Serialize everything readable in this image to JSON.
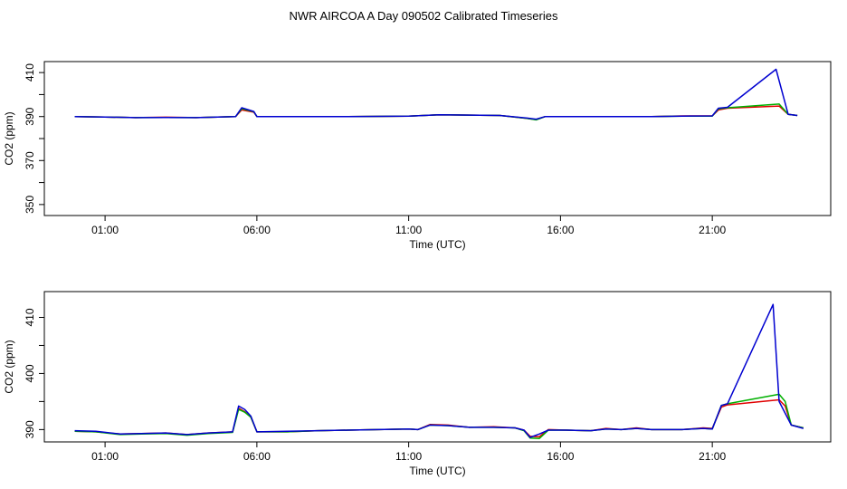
{
  "title": "NWR AIRCOA A  Day 090502  Calibrated Timeseries",
  "colors": {
    "red": "#e00000",
    "green": "#00b000",
    "blue": "#0000d0",
    "axis": "#000000"
  },
  "chart_data": [
    {
      "type": "line",
      "xlabel": "Time (UTC)",
      "ylabel": "CO2 (ppm)",
      "x_unit": "hours UTC",
      "xlim": [
        -1,
        24.9
      ],
      "ylim": [
        345,
        415
      ],
      "x_ticks": [
        1,
        6,
        11,
        16,
        21
      ],
      "x_tick_labels": [
        "01:00",
        "06:00",
        "11:00",
        "16:00",
        "21:00"
      ],
      "y_ticks": [
        350,
        370,
        390,
        410
      ],
      "y_tick_labels": [
        "350",
        "370",
        "390",
        "410"
      ],
      "series": [
        {
          "color": "red",
          "x": [
            0,
            1,
            2,
            3,
            4,
            5.3,
            5.5,
            5.9,
            6,
            9,
            11,
            12,
            14,
            14.9,
            15.2,
            15.5,
            17,
            19,
            20,
            21,
            21.2,
            21.5,
            23.2,
            23.5,
            23.8
          ],
          "y": [
            390,
            389.8,
            389.5,
            389.7,
            389.5,
            390,
            393,
            392,
            390,
            390,
            390.2,
            390.8,
            390.5,
            389.2,
            388.6,
            390,
            390,
            390,
            390.3,
            390.3,
            393,
            393.8,
            394.8,
            391,
            390.5
          ]
        },
        {
          "color": "green",
          "x": [
            0,
            1,
            2,
            3,
            4,
            5.3,
            5.5,
            5.9,
            6,
            9,
            11,
            12,
            14,
            14.9,
            15.2,
            15.5,
            17,
            19,
            20,
            21,
            21.2,
            21.5,
            23.2,
            23.5,
            23.8
          ],
          "y": [
            390,
            389.8,
            389.5,
            389.6,
            389.5,
            390,
            393.6,
            392.2,
            390,
            390,
            390.2,
            390.8,
            390.5,
            389.2,
            388.5,
            390,
            390,
            390,
            390.2,
            390.2,
            393.5,
            394,
            395.7,
            391,
            390.5
          ]
        },
        {
          "color": "blue",
          "x": [
            0,
            1,
            2,
            3,
            4,
            5.3,
            5.5,
            5.9,
            6,
            9,
            11,
            12,
            14,
            14.9,
            15.2,
            15.5,
            17,
            19,
            20,
            21,
            21.2,
            21.5,
            23.1,
            23.5,
            23.8
          ],
          "y": [
            390,
            389.8,
            389.5,
            389.6,
            389.5,
            390,
            394,
            392.3,
            390,
            390,
            390.2,
            390.8,
            390.5,
            389.3,
            388.8,
            390,
            390,
            390,
            390.2,
            390.3,
            393.8,
            394.2,
            411.5,
            391,
            390.5
          ]
        }
      ]
    },
    {
      "type": "line",
      "xlabel": "Time (UTC)",
      "ylabel": "CO2 (ppm)",
      "x_unit": "hours UTC",
      "xlim": [
        -1,
        24.9
      ],
      "ylim": [
        387.8,
        414.6
      ],
      "x_ticks": [
        1,
        6,
        11,
        16,
        21
      ],
      "x_tick_labels": [
        "01:00",
        "06:00",
        "11:00",
        "16:00",
        "21:00"
      ],
      "y_ticks": [
        390,
        400,
        410
      ],
      "y_tick_labels": [
        "390",
        "400",
        "410"
      ],
      "series": [
        {
          "color": "red",
          "x": [
            0,
            0.7,
            1.5,
            2.2,
            3,
            3.7,
            4.4,
            5.2,
            5.4,
            5.6,
            5.8,
            6.0,
            7,
            8,
            9,
            10,
            11,
            11.3,
            11.7,
            12.3,
            13,
            13.8,
            14.5,
            14.8,
            15.0,
            15.3,
            15.6,
            16.2,
            17,
            17.5,
            18,
            18.5,
            19,
            19.5,
            20,
            20.7,
            21.0,
            21.3,
            21.5,
            23.2,
            23.4,
            23.6,
            24.0
          ],
          "y": [
            389.7,
            389.6,
            389.2,
            389.3,
            389.4,
            389.1,
            389.4,
            389.6,
            393.8,
            393.2,
            392.2,
            389.6,
            389.6,
            389.8,
            389.9,
            390.0,
            390.1,
            390.0,
            390.9,
            390.8,
            390.4,
            390.5,
            390.3,
            389.9,
            388.8,
            388.7,
            390.0,
            389.9,
            389.8,
            390.2,
            390.0,
            390.3,
            390.0,
            390.0,
            390.0,
            390.3,
            390.2,
            394.0,
            394.4,
            395.3,
            394.2,
            390.8,
            390.3
          ]
        },
        {
          "color": "green",
          "x": [
            0,
            0.7,
            1.5,
            2.2,
            3,
            3.7,
            4.4,
            5.2,
            5.4,
            5.6,
            5.8,
            6.0,
            7,
            8,
            9,
            10,
            11,
            11.3,
            11.7,
            12.3,
            13,
            13.8,
            14.5,
            14.8,
            15.0,
            15.3,
            15.6,
            16.2,
            17,
            17.5,
            18,
            18.5,
            19,
            19.5,
            20,
            20.7,
            21.0,
            21.3,
            21.5,
            23.2,
            23.4,
            23.6,
            24.0
          ],
          "y": [
            389.7,
            389.6,
            389.1,
            389.2,
            389.3,
            389.0,
            389.3,
            389.5,
            393.6,
            393.1,
            392.2,
            389.6,
            389.6,
            389.8,
            389.9,
            390.0,
            390.1,
            390.0,
            390.8,
            390.7,
            390.4,
            390.4,
            390.3,
            389.8,
            388.5,
            388.4,
            389.9,
            389.9,
            389.8,
            390.1,
            390.0,
            390.2,
            390.0,
            390.0,
            390.0,
            390.2,
            390.1,
            394.3,
            394.6,
            396.3,
            395.0,
            390.8,
            390.3
          ]
        },
        {
          "color": "blue",
          "x": [
            0,
            0.7,
            1.5,
            2.2,
            3,
            3.7,
            4.4,
            5.2,
            5.4,
            5.6,
            5.8,
            6.0,
            7,
            8,
            9,
            10,
            11,
            11.3,
            11.7,
            12.3,
            13,
            13.8,
            14.5,
            14.8,
            15.0,
            15.3,
            15.6,
            16.2,
            17,
            17.5,
            18,
            18.5,
            19,
            19.5,
            20,
            20.7,
            21.0,
            21.3,
            21.5,
            23.0,
            23.2,
            23.6,
            24.0
          ],
          "y": [
            389.8,
            389.7,
            389.2,
            389.3,
            389.4,
            389.1,
            389.4,
            389.6,
            394.2,
            393.6,
            392.4,
            389.6,
            389.7,
            389.8,
            389.9,
            390.0,
            390.1,
            390.0,
            390.8,
            390.7,
            390.4,
            390.4,
            390.3,
            389.9,
            388.6,
            389.2,
            389.9,
            389.9,
            389.8,
            390.1,
            390.0,
            390.2,
            390.0,
            390.0,
            390.0,
            390.2,
            390.1,
            394.3,
            394.6,
            412.3,
            395.0,
            390.8,
            390.2
          ]
        }
      ]
    }
  ]
}
